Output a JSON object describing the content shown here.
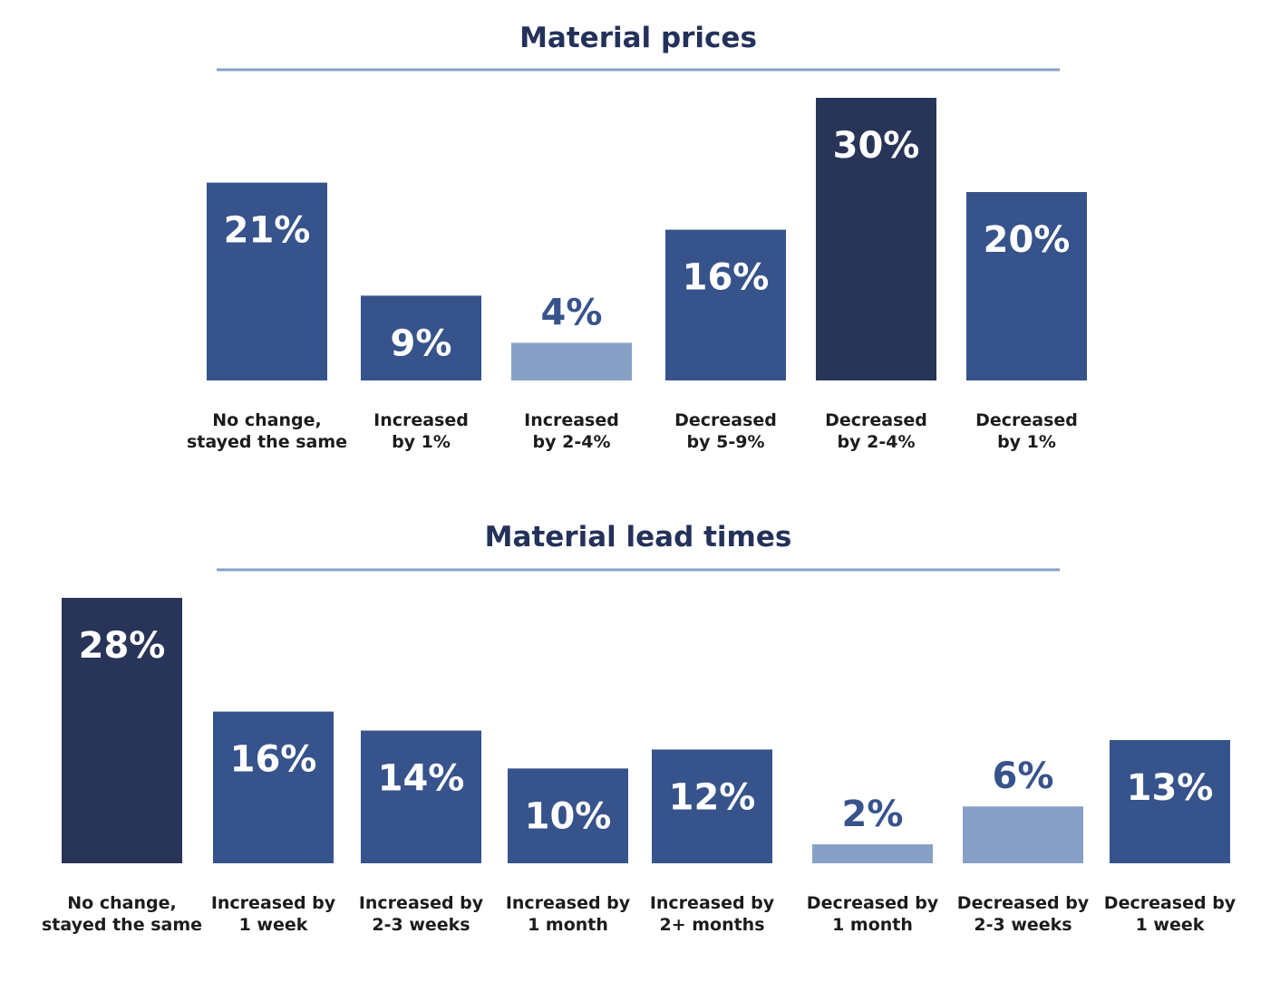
{
  "colors": {
    "title": "#24325a",
    "rule": "#87a1c6",
    "dark": "#283559",
    "mid": "#37538b",
    "light": "#87a1c6",
    "label_on_bar": "#ffffff",
    "label_above": "#37538b",
    "category_text": "#1c1c1c"
  },
  "chart_data": [
    {
      "type": "bar",
      "title": "Material prices",
      "categories": [
        [
          "No change,",
          "stayed the same"
        ],
        [
          "Increased",
          "by 1%"
        ],
        [
          "Increased",
          "by 2-4%"
        ],
        [
          "Decreased",
          "by 5-9%"
        ],
        [
          "Decreased",
          "by 2-4%"
        ],
        [
          "Decreased",
          "by 1%"
        ]
      ],
      "values": [
        21,
        9,
        4,
        16,
        30,
        20
      ],
      "value_labels": [
        "21%",
        "9%",
        "4%",
        "16%",
        "30%",
        "20%"
      ],
      "bar_tones": [
        "mid",
        "mid",
        "light",
        "mid",
        "dark",
        "mid"
      ],
      "label_positions": [
        "inside",
        "inside",
        "above",
        "inside",
        "inside",
        "inside"
      ],
      "xlabel": "",
      "ylabel": "",
      "ylim": [
        0,
        30
      ],
      "grid": false,
      "legend": "none"
    },
    {
      "type": "bar",
      "title": "Material lead times",
      "categories": [
        [
          "No change,",
          "stayed the same"
        ],
        [
          "Increased by",
          "1 week"
        ],
        [
          "Increased by",
          "2-3 weeks"
        ],
        [
          "Increased by",
          "1 month"
        ],
        [
          "Increased by",
          "2+ months"
        ],
        [
          "Decreased by",
          "1 month"
        ],
        [
          "Decreased by",
          "2-3 weeks"
        ],
        [
          "Decreased by",
          "1 week"
        ]
      ],
      "values": [
        28,
        16,
        14,
        10,
        12,
        2,
        6,
        13
      ],
      "value_labels": [
        "28%",
        "16%",
        "14%",
        "10%",
        "12%",
        "2%",
        "6%",
        "13%"
      ],
      "bar_tones": [
        "dark",
        "mid",
        "mid",
        "mid",
        "mid",
        "light",
        "light",
        "mid"
      ],
      "label_positions": [
        "inside",
        "inside",
        "inside",
        "inside",
        "inside",
        "above",
        "above",
        "inside"
      ],
      "xlabel": "",
      "ylabel": "",
      "ylim": [
        0,
        28
      ],
      "grid": false,
      "legend": "none"
    }
  ]
}
